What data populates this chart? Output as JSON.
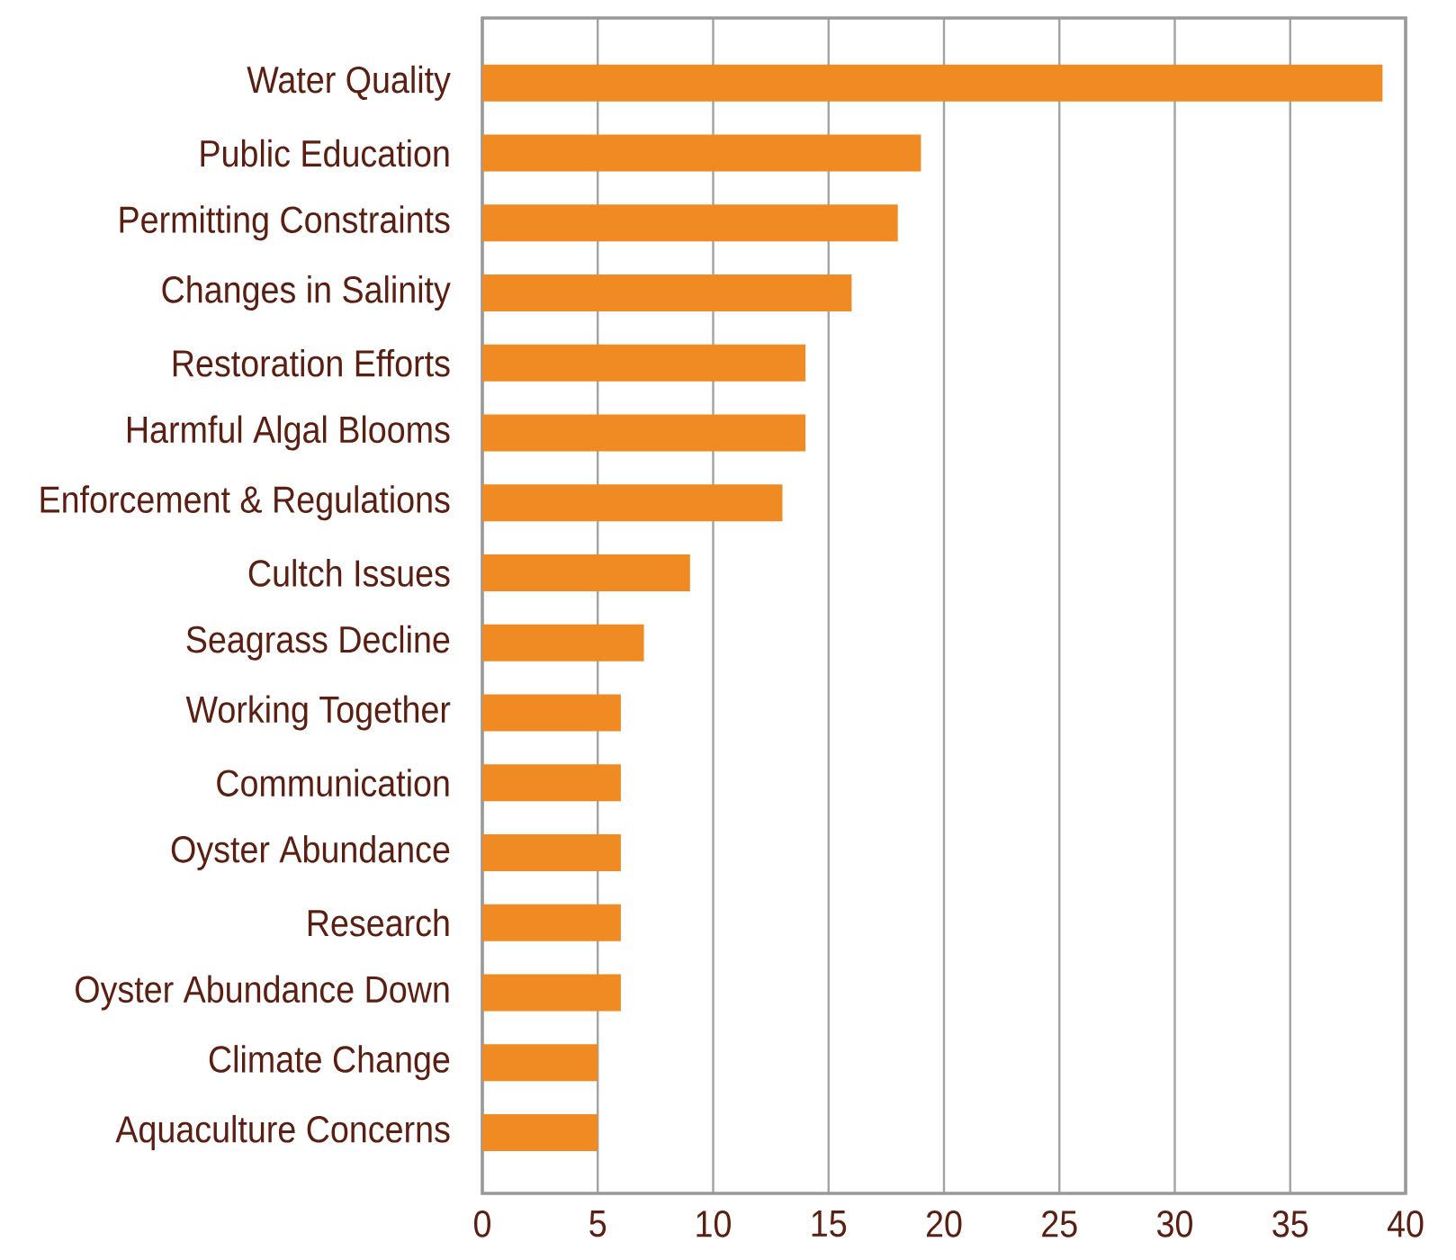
{
  "chart_data": {
    "type": "bar",
    "orientation": "horizontal",
    "categories": [
      "Water Quality",
      "Public Education",
      "Permitting Constraints",
      "Changes in Salinity",
      "Restoration Efforts",
      "Harmful Algal Blooms",
      "Enforcement & Regulations",
      "Cultch Issues",
      "Seagrass Decline",
      "Working Together",
      "Communication",
      "Oyster Abundance",
      "Research",
      "Oyster Abundance Down",
      "Climate Change",
      "Aquaculture Concerns"
    ],
    "values": [
      39,
      19,
      18,
      16,
      14,
      14,
      13,
      9,
      7,
      6,
      6,
      6,
      6,
      6,
      5,
      5
    ],
    "color": "#ef8b22",
    "xlim": [
      0,
      40
    ],
    "xticks": [
      0,
      5,
      10,
      15,
      20,
      25,
      30,
      35,
      40
    ],
    "grid": "x"
  }
}
